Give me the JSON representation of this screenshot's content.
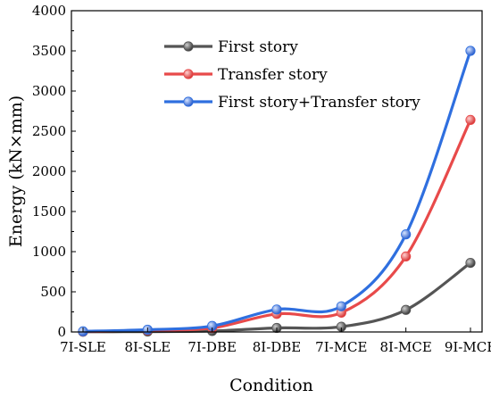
{
  "chart_data": {
    "type": "line",
    "xlabel": "Condition",
    "ylabel": "Energy (kN×mm)",
    "categories": [
      "7I-SLE",
      "8I-SLE",
      "7I-DBE",
      "8I-DBE",
      "7I-MCE",
      "8I-MCE",
      "9I-MCE"
    ],
    "ylim": [
      0,
      4000
    ],
    "yticks": [
      0,
      500,
      1000,
      1500,
      2000,
      2500,
      3000,
      3500,
      4000
    ],
    "grid": false,
    "legend_position": "top-left",
    "series": [
      {
        "name": "First story",
        "color": "#555555",
        "values": [
          2,
          5,
          12,
          50,
          65,
          275,
          860
        ]
      },
      {
        "name": "Transfer story",
        "color": "#e84a4a",
        "values": [
          5,
          20,
          50,
          225,
          240,
          940,
          2640
        ]
      },
      {
        "name": "First story+Transfer story",
        "color": "#2f6fdf",
        "values": [
          8,
          28,
          75,
          280,
          320,
          1215,
          3500
        ]
      }
    ]
  }
}
